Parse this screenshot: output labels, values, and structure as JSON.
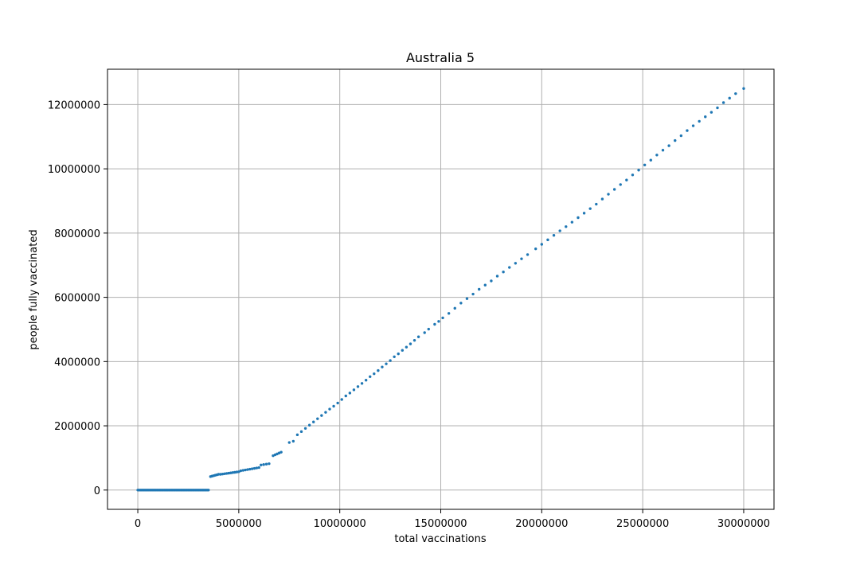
{
  "chart_data": {
    "type": "scatter",
    "title": "Australia 5",
    "xlabel": "total vaccinations",
    "ylabel": "people fully vaccinated",
    "xlim": [
      -1500000,
      31500000
    ],
    "ylim": [
      -600000,
      13100000
    ],
    "xticks": [
      0,
      5000000,
      10000000,
      15000000,
      20000000,
      25000000,
      30000000
    ],
    "xtick_labels": [
      "0",
      "5000000",
      "10000000",
      "15000000",
      "20000000",
      "25000000",
      "30000000"
    ],
    "yticks": [
      0,
      2000000,
      4000000,
      6000000,
      8000000,
      10000000,
      12000000
    ],
    "ytick_labels": [
      "0",
      "2000000",
      "4000000",
      "6000000",
      "8000000",
      "10000000",
      "12000000"
    ],
    "grid": true,
    "marker_color": "#1f77b4",
    "segments": [
      {
        "x0": 0,
        "x1": 3500000,
        "y0": 0,
        "y1": 0,
        "n": 60
      },
      {
        "x0": 3600000,
        "x1": 4000000,
        "y0": 420000,
        "y1": 490000,
        "n": 6
      },
      {
        "x0": 4100000,
        "x1": 5000000,
        "y0": 490000,
        "y1": 570000,
        "n": 10
      },
      {
        "x0": 5100000,
        "x1": 6000000,
        "y0": 600000,
        "y1": 700000,
        "n": 9
      },
      {
        "x0": 6100000,
        "x1": 6500000,
        "y0": 780000,
        "y1": 820000,
        "n": 4
      },
      {
        "x0": 6700000,
        "x1": 7100000,
        "y0": 1070000,
        "y1": 1180000,
        "n": 5
      },
      {
        "x0": 7500000,
        "x1": 7700000,
        "y0": 1480000,
        "y1": 1520000,
        "n": 2
      }
    ],
    "points": [
      [
        7900000,
        1720000
      ],
      [
        8100000,
        1820000
      ],
      [
        8300000,
        1920000
      ],
      [
        8500000,
        2020000
      ],
      [
        8700000,
        2120000
      ],
      [
        8900000,
        2220000
      ],
      [
        9100000,
        2320000
      ],
      [
        9300000,
        2420000
      ],
      [
        9500000,
        2520000
      ],
      [
        9700000,
        2610000
      ],
      [
        9900000,
        2710000
      ],
      [
        10100000,
        2820000
      ],
      [
        10300000,
        2930000
      ],
      [
        10500000,
        3020000
      ],
      [
        10700000,
        3120000
      ],
      [
        10900000,
        3220000
      ],
      [
        11100000,
        3320000
      ],
      [
        11300000,
        3420000
      ],
      [
        11500000,
        3530000
      ],
      [
        11700000,
        3620000
      ],
      [
        11900000,
        3720000
      ],
      [
        12100000,
        3830000
      ],
      [
        12300000,
        3930000
      ],
      [
        12500000,
        4030000
      ],
      [
        12700000,
        4150000
      ],
      [
        12900000,
        4240000
      ],
      [
        13100000,
        4350000
      ],
      [
        13300000,
        4450000
      ],
      [
        13500000,
        4550000
      ],
      [
        13700000,
        4660000
      ],
      [
        13900000,
        4770000
      ],
      [
        14200000,
        4900000
      ],
      [
        14400000,
        5010000
      ],
      [
        14700000,
        5160000
      ],
      [
        14900000,
        5250000
      ],
      [
        15100000,
        5360000
      ],
      [
        15400000,
        5500000
      ],
      [
        15700000,
        5660000
      ],
      [
        16000000,
        5820000
      ],
      [
        16300000,
        5960000
      ],
      [
        16600000,
        6100000
      ],
      [
        16900000,
        6250000
      ],
      [
        17200000,
        6380000
      ],
      [
        17500000,
        6510000
      ],
      [
        17800000,
        6660000
      ],
      [
        18100000,
        6790000
      ],
      [
        18400000,
        6930000
      ],
      [
        18700000,
        7060000
      ],
      [
        19000000,
        7200000
      ],
      [
        19300000,
        7330000
      ],
      [
        19700000,
        7510000
      ],
      [
        20000000,
        7650000
      ],
      [
        20300000,
        7790000
      ],
      [
        20600000,
        7930000
      ],
      [
        20900000,
        8070000
      ],
      [
        21200000,
        8200000
      ],
      [
        21500000,
        8340000
      ],
      [
        21800000,
        8480000
      ],
      [
        22100000,
        8620000
      ],
      [
        22400000,
        8760000
      ],
      [
        22700000,
        8900000
      ],
      [
        23000000,
        9060000
      ],
      [
        23300000,
        9210000
      ],
      [
        23600000,
        9360000
      ],
      [
        23900000,
        9510000
      ],
      [
        24200000,
        9650000
      ],
      [
        24500000,
        9810000
      ],
      [
        24800000,
        9960000
      ],
      [
        25100000,
        10120000
      ],
      [
        25400000,
        10270000
      ],
      [
        25700000,
        10430000
      ],
      [
        26000000,
        10580000
      ],
      [
        26300000,
        10720000
      ],
      [
        26600000,
        10880000
      ],
      [
        26900000,
        11030000
      ],
      [
        27200000,
        11190000
      ],
      [
        27500000,
        11340000
      ],
      [
        27800000,
        11480000
      ],
      [
        28100000,
        11620000
      ],
      [
        28400000,
        11760000
      ],
      [
        28700000,
        11900000
      ],
      [
        29000000,
        12060000
      ],
      [
        29300000,
        12200000
      ],
      [
        29600000,
        12340000
      ],
      [
        30000000,
        12500000
      ]
    ]
  }
}
